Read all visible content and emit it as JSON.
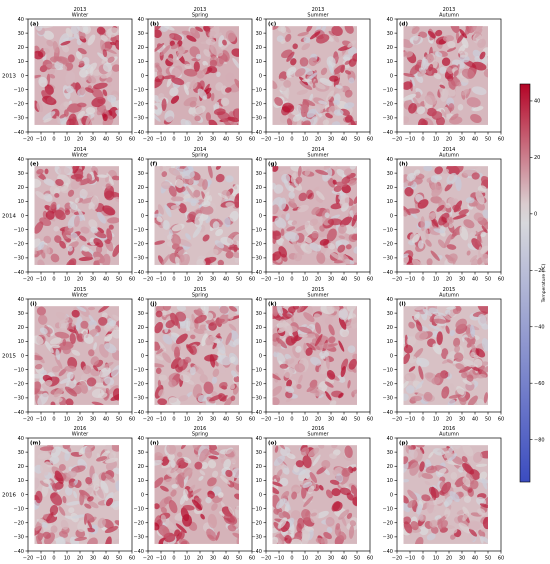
{
  "figure": {
    "years": [
      "2013",
      "2014",
      "2015",
      "2016"
    ],
    "seasons": [
      "Winter",
      "Spring",
      "Summer",
      "Autumn"
    ],
    "panel_letters": [
      "(a)",
      "(b)",
      "(c)",
      "(d)",
      "(e)",
      "(f)",
      "(g)",
      "(h)",
      "(i)",
      "(j)",
      "(k)",
      "(l)",
      "(m)",
      "(n)",
      "(o)",
      "(p)"
    ],
    "x_ticks": [
      -20,
      -10,
      0,
      10,
      20,
      30,
      40,
      50,
      60
    ],
    "y_ticks": [
      -40,
      -30,
      -20,
      -10,
      0,
      10,
      20,
      30,
      40
    ]
  },
  "colorbar": {
    "label": "Temperature (°C)",
    "ticks": [
      40,
      20,
      0,
      -20,
      -40,
      -60,
      -80
    ],
    "range": [
      -95,
      46
    ],
    "colormap": "coolwarm",
    "colors": {
      "low": "#3b4cc0",
      "mid": "#dddddd",
      "high": "#b40426"
    }
  },
  "chart_data": {
    "type": "heatmap",
    "description_of_layout": "4x4 grid of spatial temperature maps (rows = years 2013-2016, columns = seasons Winter/Spring/Summer/Autumn)",
    "xlim": [
      -20,
      60
    ],
    "ylim": [
      -40,
      40
    ],
    "data_extent_x": [
      -15,
      50
    ],
    "data_extent_y": [
      -35,
      35
    ],
    "colorbar_range": [
      -95,
      46
    ],
    "grid": false,
    "panels": [
      {
        "letter": "(a)",
        "year": "2013",
        "season": "Winter",
        "mean_value": 14
      },
      {
        "letter": "(b)",
        "year": "2013",
        "season": "Spring",
        "mean_value": 16
      },
      {
        "letter": "(c)",
        "year": "2013",
        "season": "Summer",
        "mean_value": 12
      },
      {
        "letter": "(d)",
        "year": "2013",
        "season": "Autumn",
        "mean_value": 13
      },
      {
        "letter": "(e)",
        "year": "2014",
        "season": "Winter",
        "mean_value": 13
      },
      {
        "letter": "(f)",
        "year": "2014",
        "season": "Spring",
        "mean_value": 10
      },
      {
        "letter": "(g)",
        "year": "2014",
        "season": "Summer",
        "mean_value": 14
      },
      {
        "letter": "(h)",
        "year": "2014",
        "season": "Autumn",
        "mean_value": 11
      },
      {
        "letter": "(i)",
        "year": "2015",
        "season": "Winter",
        "mean_value": 13
      },
      {
        "letter": "(j)",
        "year": "2015",
        "season": "Spring",
        "mean_value": 12
      },
      {
        "letter": "(k)",
        "year": "2015",
        "season": "Summer",
        "mean_value": 14
      },
      {
        "letter": "(l)",
        "year": "2015",
        "season": "Autumn",
        "mean_value": 10
      },
      {
        "letter": "(m)",
        "year": "2016",
        "season": "Winter",
        "mean_value": 10
      },
      {
        "letter": "(n)",
        "year": "2016",
        "season": "Spring",
        "mean_value": 15
      },
      {
        "letter": "(o)",
        "year": "2016",
        "season": "Summer",
        "mean_value": 13
      },
      {
        "letter": "(p)",
        "year": "2016",
        "season": "Autumn",
        "mean_value": 11
      }
    ]
  }
}
